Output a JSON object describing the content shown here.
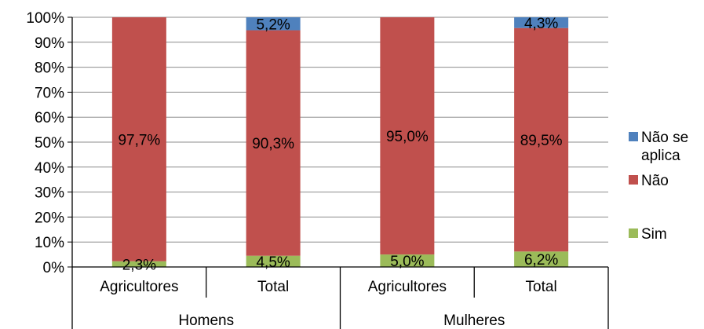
{
  "chart_data": {
    "type": "bar",
    "stacked": true,
    "percent": true,
    "categories": [
      "Agricultores",
      "Total",
      "Agricultores",
      "Total"
    ],
    "groups": [
      {
        "label": "Homens",
        "categories": [
          0,
          1
        ]
      },
      {
        "label": "Mulheres",
        "categories": [
          2,
          3
        ]
      }
    ],
    "series": [
      {
        "name": "Sim",
        "color": "#9bbb59",
        "values": [
          2.3,
          4.5,
          5.0,
          6.2
        ],
        "labels": [
          "2,3%",
          "4,5%",
          "5,0%",
          "6,2%"
        ]
      },
      {
        "name": "Não",
        "color": "#c0504d",
        "values": [
          97.7,
          90.3,
          95.0,
          89.5
        ],
        "labels": [
          "97,7%",
          "90,3%",
          "95,0%",
          "89,5%"
        ]
      },
      {
        "name": "Não se aplica",
        "color": "#4f81bd",
        "values": [
          0,
          5.2,
          0,
          4.3
        ],
        "labels": [
          "",
          "5,2%",
          "",
          "4,3%"
        ]
      }
    ],
    "legend": {
      "position": "right",
      "items": [
        {
          "series": 2,
          "lines": [
            "Não se",
            "aplica"
          ]
        },
        {
          "series": 1,
          "lines": [
            "Não"
          ]
        },
        {
          "series": 0,
          "lines": [
            "Sim"
          ]
        }
      ]
    },
    "ylim": [
      0,
      100
    ],
    "yticks": [
      "0%",
      "10%",
      "20%",
      "30%",
      "40%",
      "50%",
      "60%",
      "70%",
      "80%",
      "90%",
      "100%"
    ],
    "grid": true
  }
}
